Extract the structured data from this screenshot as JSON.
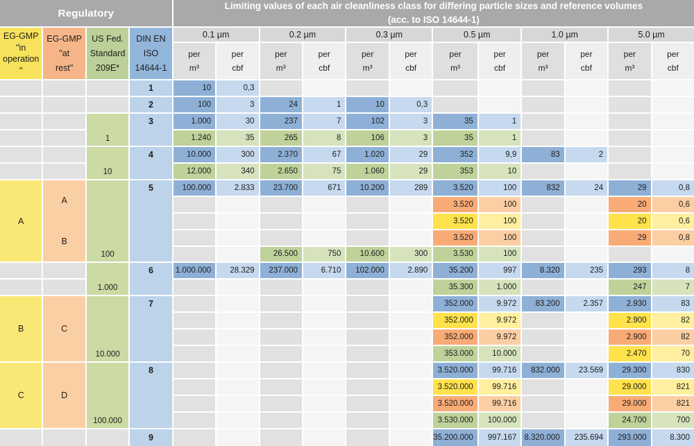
{
  "header": {
    "regulatory": "Regulatory",
    "title_line1": "Limiting values of each air cleanliness class for differing particle sizes and reference volumes",
    "title_line2": "(acc. to ISO 14644-1)",
    "left_columns": [
      {
        "id": "eg-gmp-in-operation",
        "lines": [
          "EG-GMP",
          "\"in",
          "operation",
          "\""
        ],
        "color": "header_yellow"
      },
      {
        "id": "eg-gmp-at-rest",
        "lines": [
          "EG-GMP",
          "\"at",
          "rest\""
        ],
        "color": "header_orange"
      },
      {
        "id": "us-fed-standard-209e",
        "lines": [
          "US Fed.",
          "Standard",
          "209E*"
        ],
        "color": "header_green"
      },
      {
        "id": "din-en-iso-14644-1",
        "lines": [
          "DIN EN",
          "ISO",
          "14644-1"
        ],
        "color": "header_blue"
      }
    ],
    "particle_sizes": [
      "0.1 µm",
      "0.2 µm",
      "0.3 µm",
      "0.5 µm",
      "1.0 µm",
      "5.0 µm"
    ],
    "unit_headers": [
      [
        "per",
        "m³"
      ],
      [
        "per",
        "cbf"
      ]
    ]
  },
  "palette": {
    "band": "#a9a9a9",
    "particle_bg": "#d7d7d7",
    "unit_m3_bg": "#dfdfdf",
    "unit_cbf_bg": "#efefef",
    "header_yellow": "#f7e25b",
    "header_orange": "#f6b588",
    "header_green": "#bcd099",
    "header_blue": "#92b5da",
    "span_yellow": "#fae876",
    "span_orange": "#fbcfa4",
    "span_green": "#ccdaa3",
    "span_blue": "#bcd3ea",
    "blue_dark": "#8eb0d6",
    "blue_light": "#c6d9ee",
    "green_dark": "#bed29a",
    "green_light": "#d6e3bd",
    "yellow_dark": "#ffe24c",
    "yellow_light": "#ffef9e",
    "orange_dark": "#f9ab76",
    "orange_light": "#fbcfa3",
    "gray_dark": "#e1e1e1",
    "gray_light": "#f5f5f5",
    "text": "#1d1d1d"
  },
  "labels": {
    "iso_classes": [
      {
        "t": "1",
        "r": 1,
        "s": 1
      },
      {
        "t": "2",
        "r": 2,
        "s": 1
      },
      {
        "t": "3",
        "r": 3,
        "s": 2
      },
      {
        "t": "4",
        "r": 5,
        "s": 2
      },
      {
        "t": "5",
        "r": 7,
        "s": 5
      },
      {
        "t": "6",
        "r": 12,
        "s": 2
      },
      {
        "t": "7",
        "r": 14,
        "s": 4
      },
      {
        "t": "8",
        "r": 18,
        "s": 4
      },
      {
        "t": "9",
        "r": 22,
        "s": 1
      }
    ],
    "fed_classes": [
      {
        "t": "1",
        "r": 3,
        "s": 2
      },
      {
        "t": "10",
        "r": 5,
        "s": 2
      },
      {
        "t": "100",
        "r": 7,
        "s": 5
      },
      {
        "t": "1.000",
        "r": 12,
        "s": 2
      },
      {
        "t": "10.000",
        "r": 14,
        "s": 4
      },
      {
        "t": "100.000",
        "r": 18,
        "s": 4
      }
    ],
    "gmp_in_operation": [
      {
        "t": [
          "A"
        ],
        "r": 7,
        "s": 5
      },
      {
        "t": [
          "B"
        ],
        "r": 14,
        "s": 4
      },
      {
        "t": [
          "C"
        ],
        "r": 18,
        "s": 4
      }
    ],
    "gmp_at_rest": [
      {
        "t": [
          "A",
          "B"
        ],
        "r": 7,
        "s": 5
      },
      {
        "t": [
          "C"
        ],
        "r": 14,
        "s": 4
      },
      {
        "t": [
          "D"
        ],
        "r": 18,
        "s": 4
      }
    ]
  },
  "rows": [
    [
      [
        "10",
        "blue"
      ],
      [
        "0,3",
        "blue"
      ],
      null,
      null,
      null,
      null,
      null,
      null,
      null,
      null,
      null,
      null
    ],
    [
      [
        "100",
        "blue"
      ],
      [
        "3",
        "blue"
      ],
      [
        "24",
        "blue"
      ],
      [
        "1",
        "blue"
      ],
      [
        "10",
        "blue"
      ],
      [
        "0,3",
        "blue"
      ],
      null,
      null,
      null,
      null,
      null,
      null
    ],
    [
      [
        "1.000",
        "blue"
      ],
      [
        "30",
        "blue"
      ],
      [
        "237",
        "blue"
      ],
      [
        "7",
        "blue"
      ],
      [
        "102",
        "blue"
      ],
      [
        "3",
        "blue"
      ],
      [
        "35",
        "blue"
      ],
      [
        "1",
        "blue"
      ],
      null,
      null,
      null,
      null
    ],
    [
      [
        "1.240",
        "green"
      ],
      [
        "35",
        "green"
      ],
      [
        "265",
        "green"
      ],
      [
        "8",
        "green"
      ],
      [
        "106",
        "green"
      ],
      [
        "3",
        "green"
      ],
      [
        "35",
        "green"
      ],
      [
        "1",
        "green"
      ],
      null,
      null,
      null,
      null
    ],
    [
      [
        "10.000",
        "blue"
      ],
      [
        "300",
        "blue"
      ],
      [
        "2.370",
        "blue"
      ],
      [
        "67",
        "blue"
      ],
      [
        "1.020",
        "blue"
      ],
      [
        "29",
        "blue"
      ],
      [
        "352",
        "blue"
      ],
      [
        "9,9",
        "blue"
      ],
      [
        "83",
        "blue"
      ],
      [
        "2",
        "blue"
      ],
      null,
      null
    ],
    [
      [
        "12.000",
        "green"
      ],
      [
        "340",
        "green"
      ],
      [
        "2.650",
        "green"
      ],
      [
        "75",
        "green"
      ],
      [
        "1.060",
        "green"
      ],
      [
        "29",
        "green"
      ],
      [
        "353",
        "green"
      ],
      [
        "10",
        "green"
      ],
      null,
      null,
      null,
      null
    ],
    [
      [
        "100.000",
        "blue"
      ],
      [
        "2.833",
        "blue"
      ],
      [
        "23.700",
        "blue"
      ],
      [
        "671",
        "blue"
      ],
      [
        "10.200",
        "blue"
      ],
      [
        "289",
        "blue"
      ],
      [
        "3.520",
        "blue"
      ],
      [
        "100",
        "blue"
      ],
      [
        "832",
        "blue"
      ],
      [
        "24",
        "blue"
      ],
      [
        "29",
        "blue"
      ],
      [
        "0,8",
        "blue"
      ]
    ],
    [
      null,
      null,
      null,
      null,
      null,
      null,
      [
        "3.520",
        "orange"
      ],
      [
        "100",
        "orange"
      ],
      null,
      null,
      [
        "20",
        "orange"
      ],
      [
        "0,6",
        "orange"
      ]
    ],
    [
      null,
      null,
      null,
      null,
      null,
      null,
      [
        "3.520",
        "yellow"
      ],
      [
        "100",
        "yellow"
      ],
      null,
      null,
      [
        "20",
        "yellow"
      ],
      [
        "0,6",
        "yellow"
      ]
    ],
    [
      null,
      null,
      null,
      null,
      null,
      null,
      [
        "3.520",
        "orange"
      ],
      [
        "100",
        "orange"
      ],
      null,
      null,
      [
        "29",
        "orange"
      ],
      [
        "0,8",
        "orange"
      ]
    ],
    [
      null,
      null,
      [
        "26.500",
        "green"
      ],
      [
        "750",
        "green"
      ],
      [
        "10.600",
        "green"
      ],
      [
        "300",
        "green"
      ],
      [
        "3.530",
        "green"
      ],
      [
        "100",
        "green"
      ],
      null,
      null,
      null,
      null
    ],
    [
      [
        "1.000.000",
        "blue"
      ],
      [
        "28.329",
        "blue"
      ],
      [
        "237.000",
        "blue"
      ],
      [
        "6.710",
        "blue"
      ],
      [
        "102.000",
        "blue"
      ],
      [
        "2.890",
        "blue"
      ],
      [
        "35.200",
        "blue"
      ],
      [
        "997",
        "blue"
      ],
      [
        "8.320",
        "blue"
      ],
      [
        "235",
        "blue"
      ],
      [
        "293",
        "blue"
      ],
      [
        "8",
        "blue"
      ]
    ],
    [
      null,
      null,
      null,
      null,
      null,
      null,
      [
        "35.300",
        "green"
      ],
      [
        "1.000",
        "green"
      ],
      null,
      null,
      [
        "247",
        "green"
      ],
      [
        "7",
        "green"
      ]
    ],
    [
      null,
      null,
      null,
      null,
      null,
      null,
      [
        "352.000",
        "blue"
      ],
      [
        "9.972",
        "blue"
      ],
      [
        "83.200",
        "blue"
      ],
      [
        "2.357",
        "blue"
      ],
      [
        "2.930",
        "blue"
      ],
      [
        "83",
        "blue"
      ]
    ],
    [
      null,
      null,
      null,
      null,
      null,
      null,
      [
        "352.000",
        "yellow"
      ],
      [
        "9.972",
        "yellow"
      ],
      null,
      null,
      [
        "2.900",
        "yellow"
      ],
      [
        "82",
        "yellow"
      ]
    ],
    [
      null,
      null,
      null,
      null,
      null,
      null,
      [
        "352.000",
        "orange"
      ],
      [
        "9.972",
        "orange"
      ],
      null,
      null,
      [
        "2.900",
        "orange"
      ],
      [
        "82",
        "orange"
      ]
    ],
    [
      null,
      null,
      null,
      null,
      null,
      null,
      [
        "353.000",
        "green"
      ],
      [
        "10.000",
        "green"
      ],
      null,
      null,
      [
        "2.470",
        "yellow"
      ],
      [
        "70",
        "yellow"
      ]
    ],
    [
      null,
      null,
      null,
      null,
      null,
      null,
      [
        "3.520.000",
        "blue"
      ],
      [
        "99.716",
        "blue"
      ],
      [
        "832.000",
        "blue"
      ],
      [
        "23.569",
        "blue"
      ],
      [
        "29.300",
        "blue"
      ],
      [
        "830",
        "blue"
      ]
    ],
    [
      null,
      null,
      null,
      null,
      null,
      null,
      [
        "3.520.000",
        "yellow"
      ],
      [
        "99.716",
        "yellow"
      ],
      null,
      null,
      [
        "29.000",
        "yellow"
      ],
      [
        "821",
        "yellow"
      ]
    ],
    [
      null,
      null,
      null,
      null,
      null,
      null,
      [
        "3.520.000",
        "orange"
      ],
      [
        "99.716",
        "orange"
      ],
      null,
      null,
      [
        "29.000",
        "orange"
      ],
      [
        "821",
        "orange"
      ]
    ],
    [
      null,
      null,
      null,
      null,
      null,
      null,
      [
        "3.530.000",
        "green"
      ],
      [
        "100.000",
        "green"
      ],
      null,
      null,
      [
        "24.700",
        "green"
      ],
      [
        "700",
        "green"
      ]
    ],
    [
      null,
      null,
      null,
      null,
      null,
      null,
      [
        "35.200.000",
        "blue"
      ],
      [
        "997.167",
        "blue"
      ],
      [
        "8.320.000",
        "blue"
      ],
      [
        "235.694",
        "blue"
      ],
      [
        "293.000",
        "blue"
      ],
      [
        "8.300",
        "blue"
      ]
    ]
  ]
}
